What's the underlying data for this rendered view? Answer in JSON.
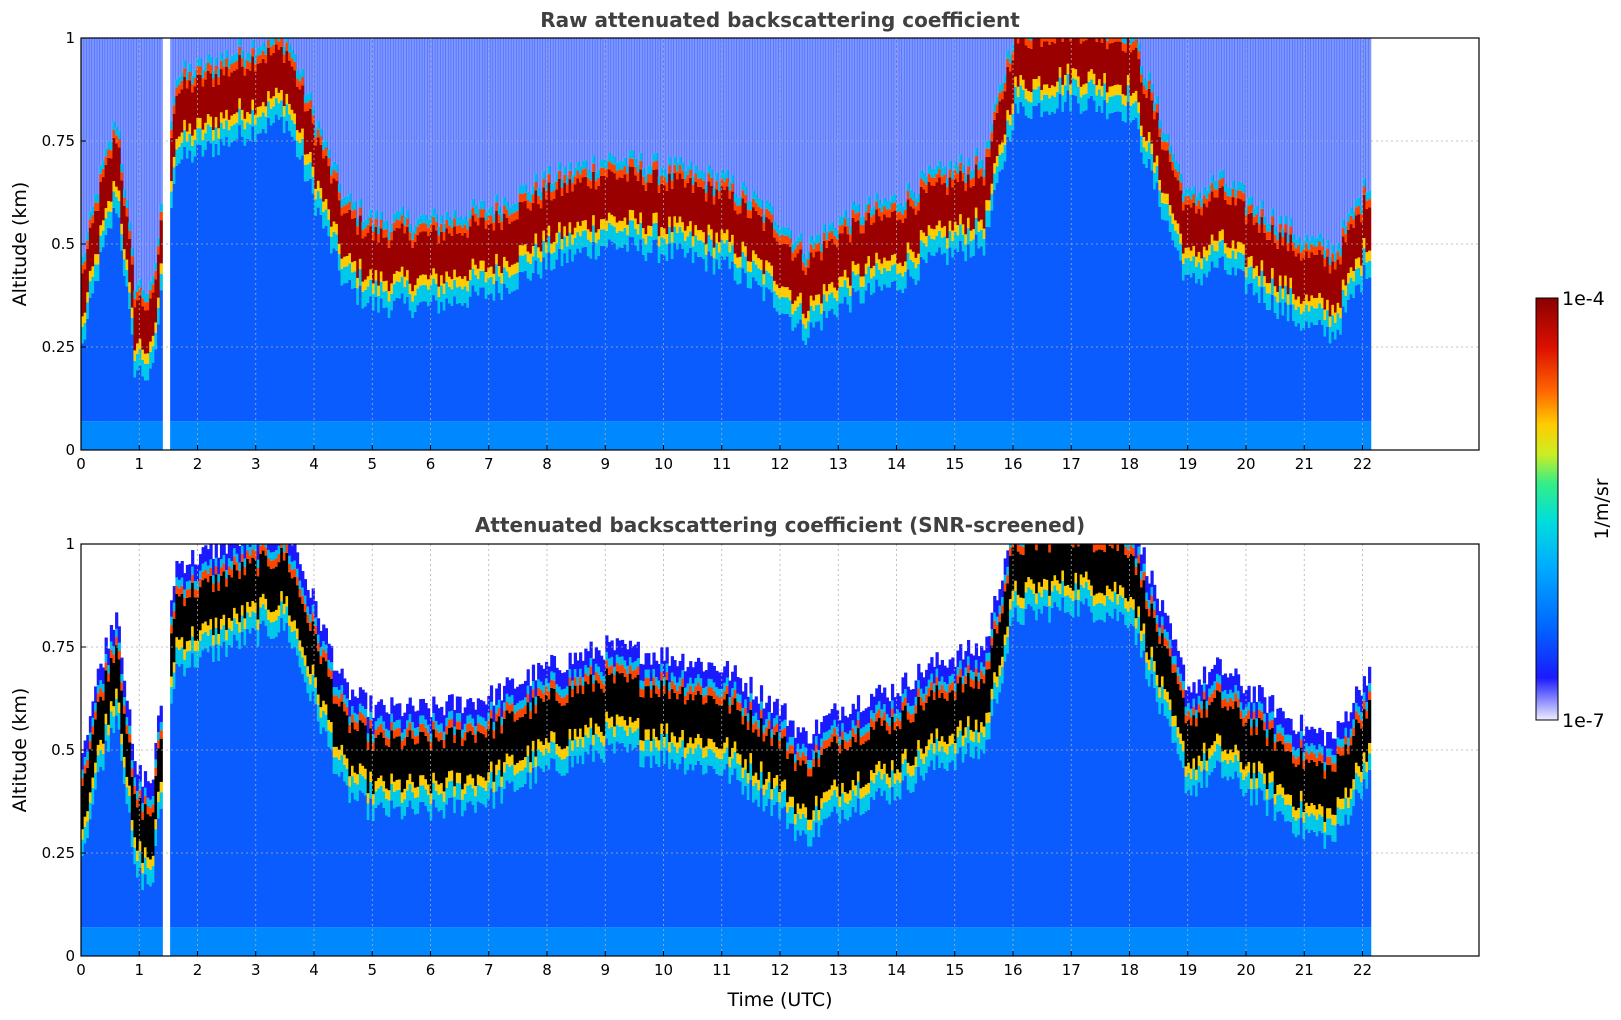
{
  "chart_data": [
    {
      "type": "heatmap",
      "title": "Raw attenuated backscattering coefficient",
      "xlabel": "",
      "ylabel": "Altitude (km)",
      "xlim": [
        0,
        24
      ],
      "ylim": [
        0,
        1
      ],
      "x_ticks": [
        "0",
        "1",
        "2",
        "3",
        "4",
        "5",
        "6",
        "7",
        "8",
        "9",
        "10",
        "11",
        "12",
        "13",
        "14",
        "15",
        "16",
        "17",
        "18",
        "19",
        "20",
        "21",
        "22"
      ],
      "y_ticks": [
        "0",
        "0.25",
        "0.5",
        "0.75",
        "1"
      ],
      "data_end_time": 22.1,
      "gap_interval": [
        1.42,
        1.5
      ],
      "grid": true,
      "layer": {
        "description": "boundary-layer top / aerosol layer altitude (km)",
        "time": [
          0,
          0.3,
          0.6,
          0.9,
          1.2,
          1.6,
          2.0,
          2.5,
          3.0,
          3.5,
          4.0,
          4.5,
          5.0,
          6.0,
          7.0,
          8.0,
          9.0,
          10.0,
          11.0,
          12.0,
          12.4,
          13.0,
          13.5,
          14.0,
          14.5,
          15.0,
          15.5,
          16.0,
          17.0,
          18.0,
          18.5,
          19.0,
          19.5,
          20.0,
          20.5,
          21.0,
          21.5,
          22.1
        ],
        "altitude": [
          0.35,
          0.55,
          0.7,
          0.3,
          0.27,
          0.8,
          0.82,
          0.85,
          0.88,
          0.9,
          0.7,
          0.5,
          0.45,
          0.45,
          0.48,
          0.55,
          0.6,
          0.58,
          0.55,
          0.45,
          0.38,
          0.45,
          0.48,
          0.5,
          0.55,
          0.58,
          0.6,
          0.92,
          0.95,
          0.92,
          0.7,
          0.5,
          0.55,
          0.5,
          0.45,
          0.4,
          0.38,
          0.55
        ]
      },
      "colorbar": {
        "min_label": "1e-7",
        "max_label": "1e-4",
        "label": "1/m/sr",
        "scale": "log"
      }
    },
    {
      "type": "heatmap",
      "title": "Attenuated backscattering coefficient (SNR-screened)",
      "xlabel": "Time (UTC)",
      "ylabel": "Altitude (km)",
      "xlim": [
        0,
        24
      ],
      "ylim": [
        0,
        1
      ],
      "x_ticks": [
        "0",
        "1",
        "2",
        "3",
        "4",
        "5",
        "6",
        "7",
        "8",
        "9",
        "10",
        "11",
        "12",
        "13",
        "14",
        "15",
        "16",
        "17",
        "18",
        "19",
        "20",
        "21",
        "22"
      ],
      "y_ticks": [
        "0",
        "0.25",
        "0.5",
        "0.75",
        "1"
      ],
      "data_end_time": 22.1,
      "gap_interval": [
        1.42,
        1.5
      ],
      "grid": true,
      "saturated_color": "#000000"
    }
  ],
  "colorbar": {
    "max_label": "1e-4",
    "min_label": "1e-7",
    "label": "1/m/sr",
    "colors": [
      "#eeeeff",
      "#1a1aff",
      "#0066ff",
      "#00aaff",
      "#00dddd",
      "#33ee88",
      "#ccee22",
      "#ffcc00",
      "#ff6600",
      "#dd1100",
      "#8b0000"
    ]
  }
}
